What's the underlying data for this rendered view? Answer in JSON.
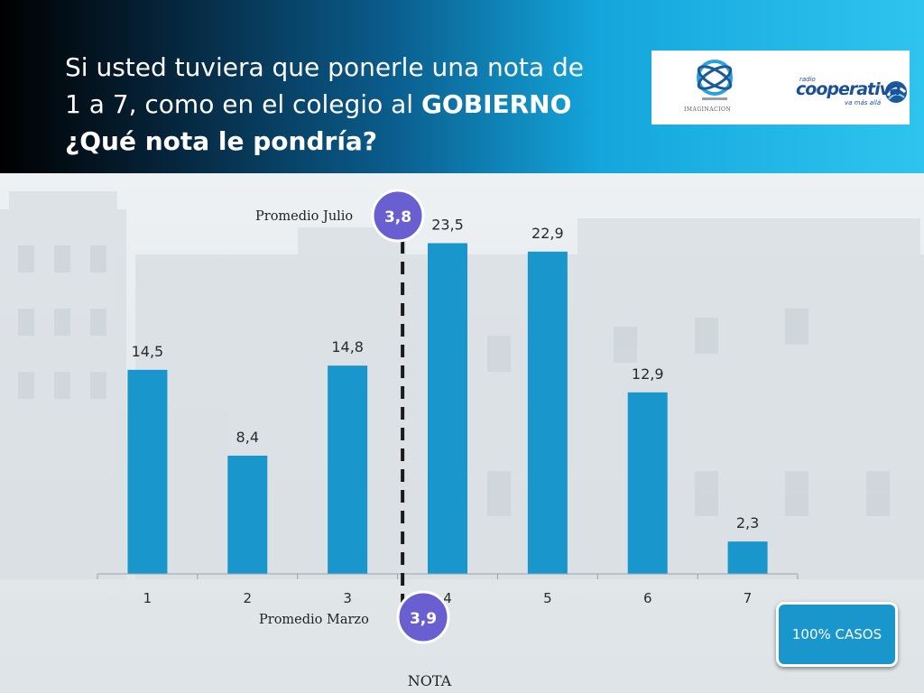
{
  "title": {
    "line1": "Si usted tuviera que ponerle una nota de",
    "line2_prefix": "1 a 7, como en el colegio al ",
    "line2_bold": "GOBIERNO",
    "line3": "¿Qué nota le pondría?"
  },
  "logos": {
    "imaginacion": "IMAGINACION",
    "cooperativa_radio": "radio",
    "cooperativa": "cooperativa",
    "cooperativa_slogan": "va más allá"
  },
  "badge": {
    "label": "100% CASOS"
  },
  "colors": {
    "bar": "#1996cb",
    "header_start": "#000000",
    "header_end": "#2fc4ef",
    "average_bubble": "#6a5fd0"
  },
  "chart_data": {
    "type": "bar",
    "categories": [
      "1",
      "2",
      "3",
      "4",
      "5",
      "6",
      "7"
    ],
    "values": [
      14.5,
      8.4,
      14.8,
      23.5,
      22.9,
      12.9,
      2.3
    ],
    "value_labels": [
      "14,5",
      "8,4",
      "14,8",
      "23,5",
      "22,9",
      "12,9",
      "2,3"
    ],
    "title": "",
    "xlabel": "NOTA",
    "ylabel": "",
    "ylim": [
      0,
      25
    ],
    "grid": false,
    "annotations": {
      "average_line": {
        "x_value": 3.55,
        "style": "dashed"
      },
      "julio": {
        "label": "Promedio Julio",
        "value": "3,8",
        "position": "top"
      },
      "marzo": {
        "label": "Promedio Marzo",
        "value": "3,9",
        "position": "bottom"
      }
    }
  }
}
